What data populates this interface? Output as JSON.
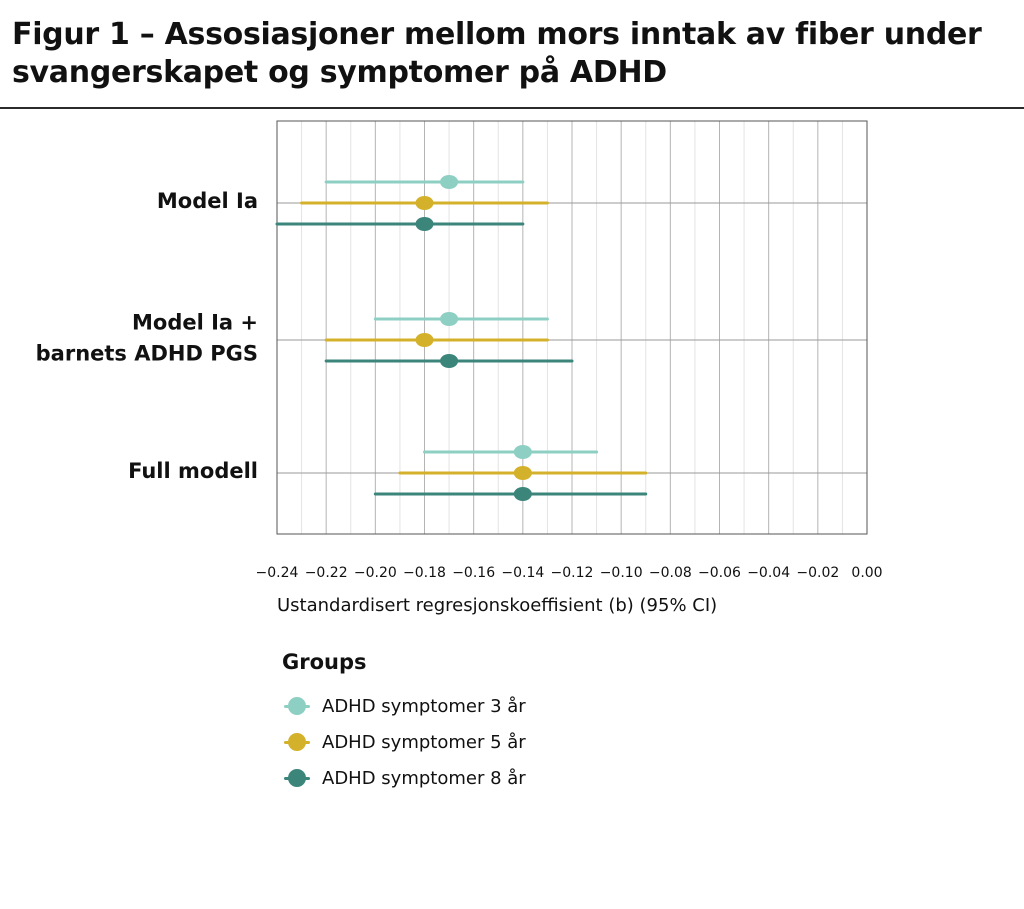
{
  "title": "Figur 1 – Assosiasjoner mellom mors inntak av fiber under svangerskapet og symptomer på ADHD",
  "chart_data": {
    "type": "scatter",
    "subtype": "forest-plot",
    "title": "Figur 1 – Assosiasjoner mellom mors inntak av fiber under svangerskapet og symptomer på ADHD",
    "xlabel": "Ustandardisert regresjonskoeffisient (b) (95% CI)",
    "ylabel": "",
    "xlim": [
      -0.24,
      0.0
    ],
    "xticks": [
      -0.24,
      -0.22,
      -0.2,
      -0.18,
      -0.16,
      -0.14,
      -0.12,
      -0.1,
      -0.08,
      -0.06,
      -0.04,
      -0.02,
      0.0
    ],
    "xtick_labels": [
      "-0.24",
      "-0.22",
      "-0.20",
      "-0.18",
      "-0.16",
      "-0.14",
      "-0.12",
      "-0.10",
      "-0.08",
      "-0.06",
      "-0.04",
      "-0.02",
      "0.00"
    ],
    "categories": [
      "Model Ia",
      "Model Ia +\nbarnets ADHD PGS",
      "Full modell"
    ],
    "category_labels": [
      [
        "Model Ia"
      ],
      [
        "Model Ia +",
        "barnets ADHD PGS"
      ],
      [
        "Full modell"
      ]
    ],
    "grid": true,
    "legend_title": "Groups",
    "legend_position": "bottom",
    "series": [
      {
        "name": "ADHD symptomer 3 år",
        "color": "#8ecfc4",
        "estimates": [
          -0.17,
          -0.17,
          -0.14
        ],
        "lower": [
          -0.22,
          -0.2,
          -0.18
        ],
        "upper": [
          -0.14,
          -0.13,
          -0.11
        ]
      },
      {
        "name": "ADHD symptomer 5 år",
        "color": "#d4b12a",
        "estimates": [
          -0.18,
          -0.18,
          -0.14
        ],
        "lower": [
          -0.23,
          -0.22,
          -0.19
        ],
        "upper": [
          -0.13,
          -0.13,
          -0.09
        ]
      },
      {
        "name": "ADHD symptomer 8 år",
        "color": "#3b857b",
        "estimates": [
          -0.18,
          -0.17,
          -0.14
        ],
        "lower": [
          -0.24,
          -0.22,
          -0.2
        ],
        "upper": [
          -0.14,
          -0.12,
          -0.09
        ]
      }
    ]
  }
}
